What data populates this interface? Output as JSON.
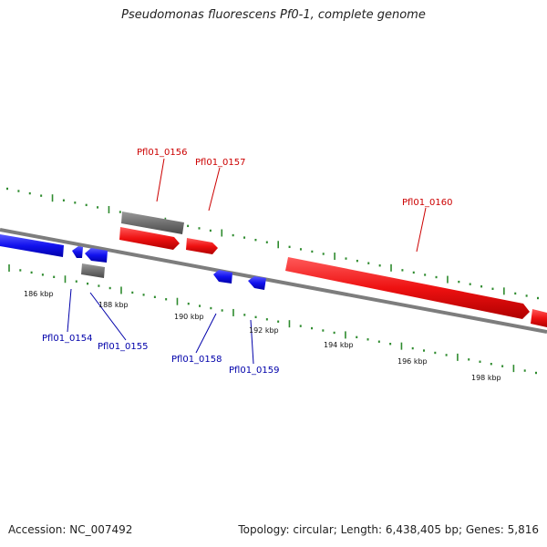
{
  "title": "Pseudomonas fluorescens Pf0-1, complete genome",
  "footer": {
    "accession": "Accession: NC_007492",
    "summary": "Topology: circular; Length: 6,438,405 bp; Genes: 5,816"
  },
  "colors": {
    "forward_strand": "#ee1111",
    "reverse_strand": "#1111ee",
    "rna_feature": "#707070",
    "backbone": "#8a8a8a",
    "ticks": "#2e8b2e",
    "forward_label": "#cc0000",
    "reverse_label": "#0000aa"
  },
  "kbp_labels": [
    "186 kbp",
    "188 kbp",
    "190 kbp",
    "192 kbp",
    "194 kbp",
    "196 kbp",
    "198 kbp"
  ],
  "gene_labels": {
    "forward": [
      "Pfl01_0156",
      "Pfl01_0157",
      "Pfl01_0160"
    ],
    "reverse": [
      "Pfl01_0154",
      "Pfl01_0155",
      "Pfl01_0158",
      "Pfl01_0159"
    ]
  }
}
